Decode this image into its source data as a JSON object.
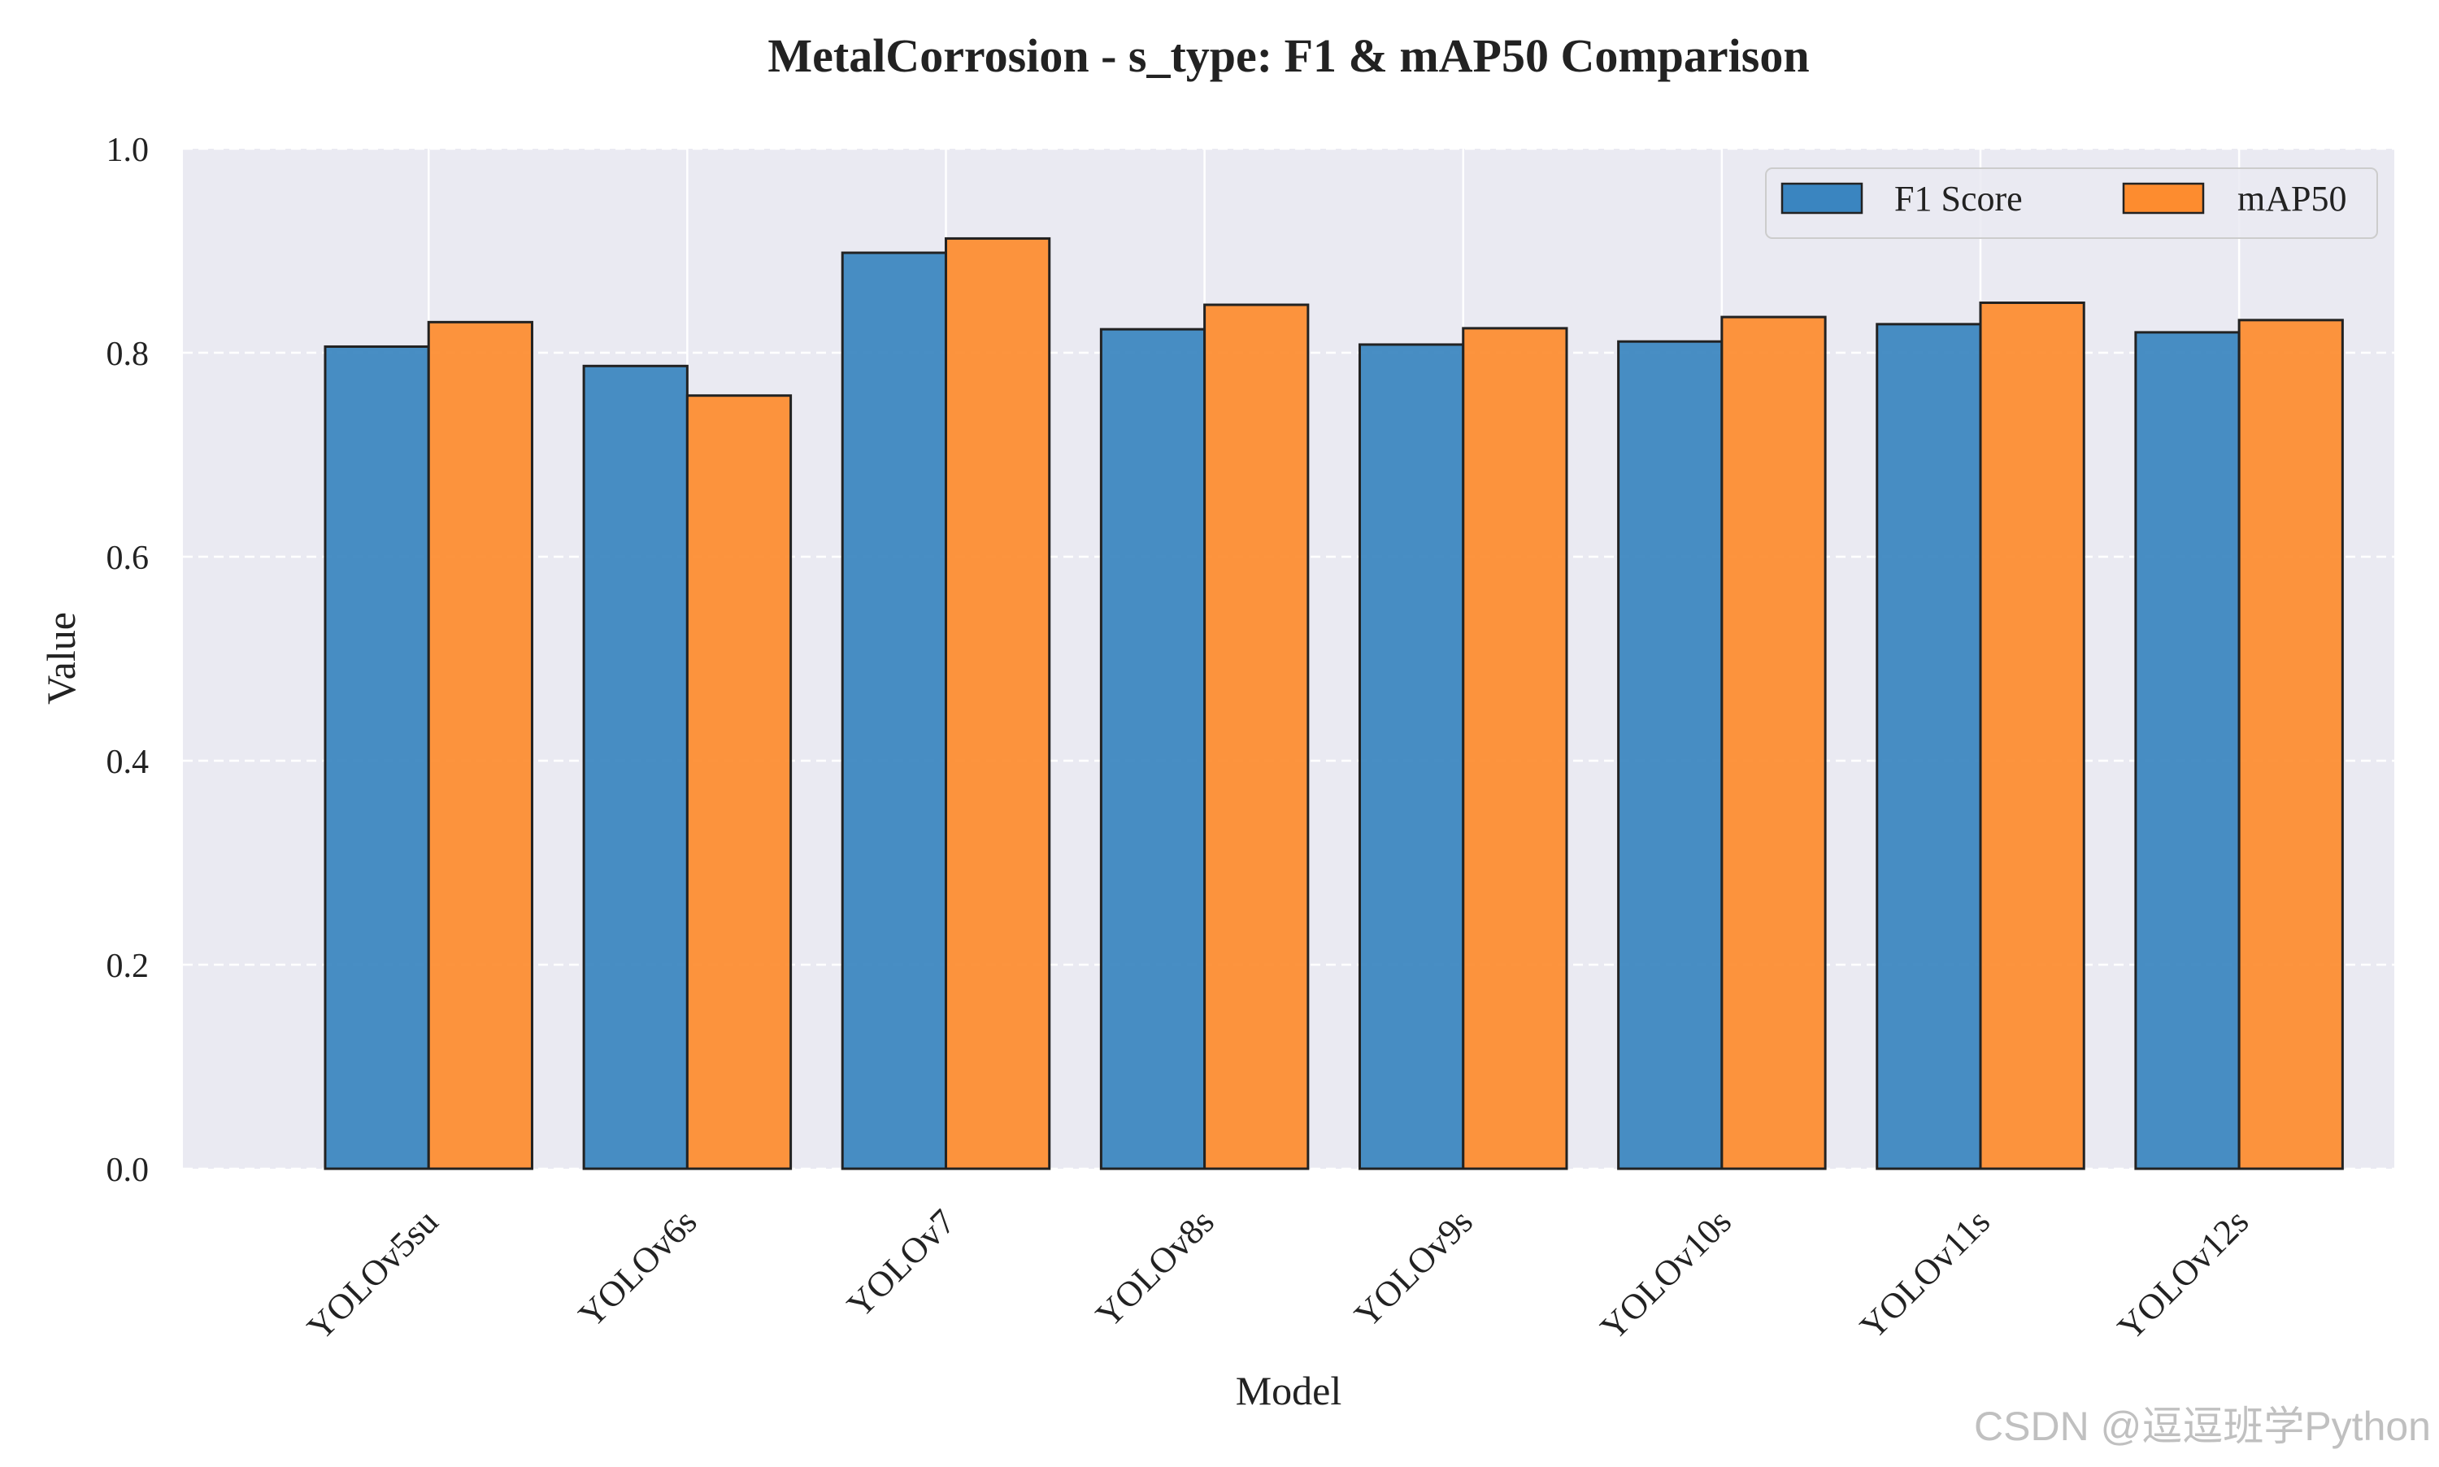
{
  "chart_data": {
    "type": "bar",
    "title": "MetalCorrosion - s_type: F1 & mAP50 Comparison",
    "xlabel": "Model",
    "ylabel": "Value",
    "ylim": [
      0,
      1.0
    ],
    "yticks": [
      "0.0",
      "0.2",
      "0.4",
      "0.6",
      "0.8",
      "1.0"
    ],
    "categories": [
      "YOLOv5su",
      "YOLOv6s",
      "YOLOv7",
      "YOLOv8s",
      "YOLOv9s",
      "YOLOv10s",
      "YOLOv11s",
      "YOLOv12s"
    ],
    "series": [
      {
        "name": "F1 Score",
        "color": "#3a85c0",
        "values": [
          0.806,
          0.787,
          0.898,
          0.823,
          0.808,
          0.811,
          0.828,
          0.82
        ]
      },
      {
        "name": "mAP50",
        "color": "#fd8c2f",
        "values": [
          0.83,
          0.758,
          0.912,
          0.847,
          0.824,
          0.835,
          0.849,
          0.832
        ]
      }
    ],
    "grid": true,
    "legend": "top-right",
    "plot_background": "#eaeaf2"
  },
  "watermark": "CSDN @逗逗班学Python"
}
